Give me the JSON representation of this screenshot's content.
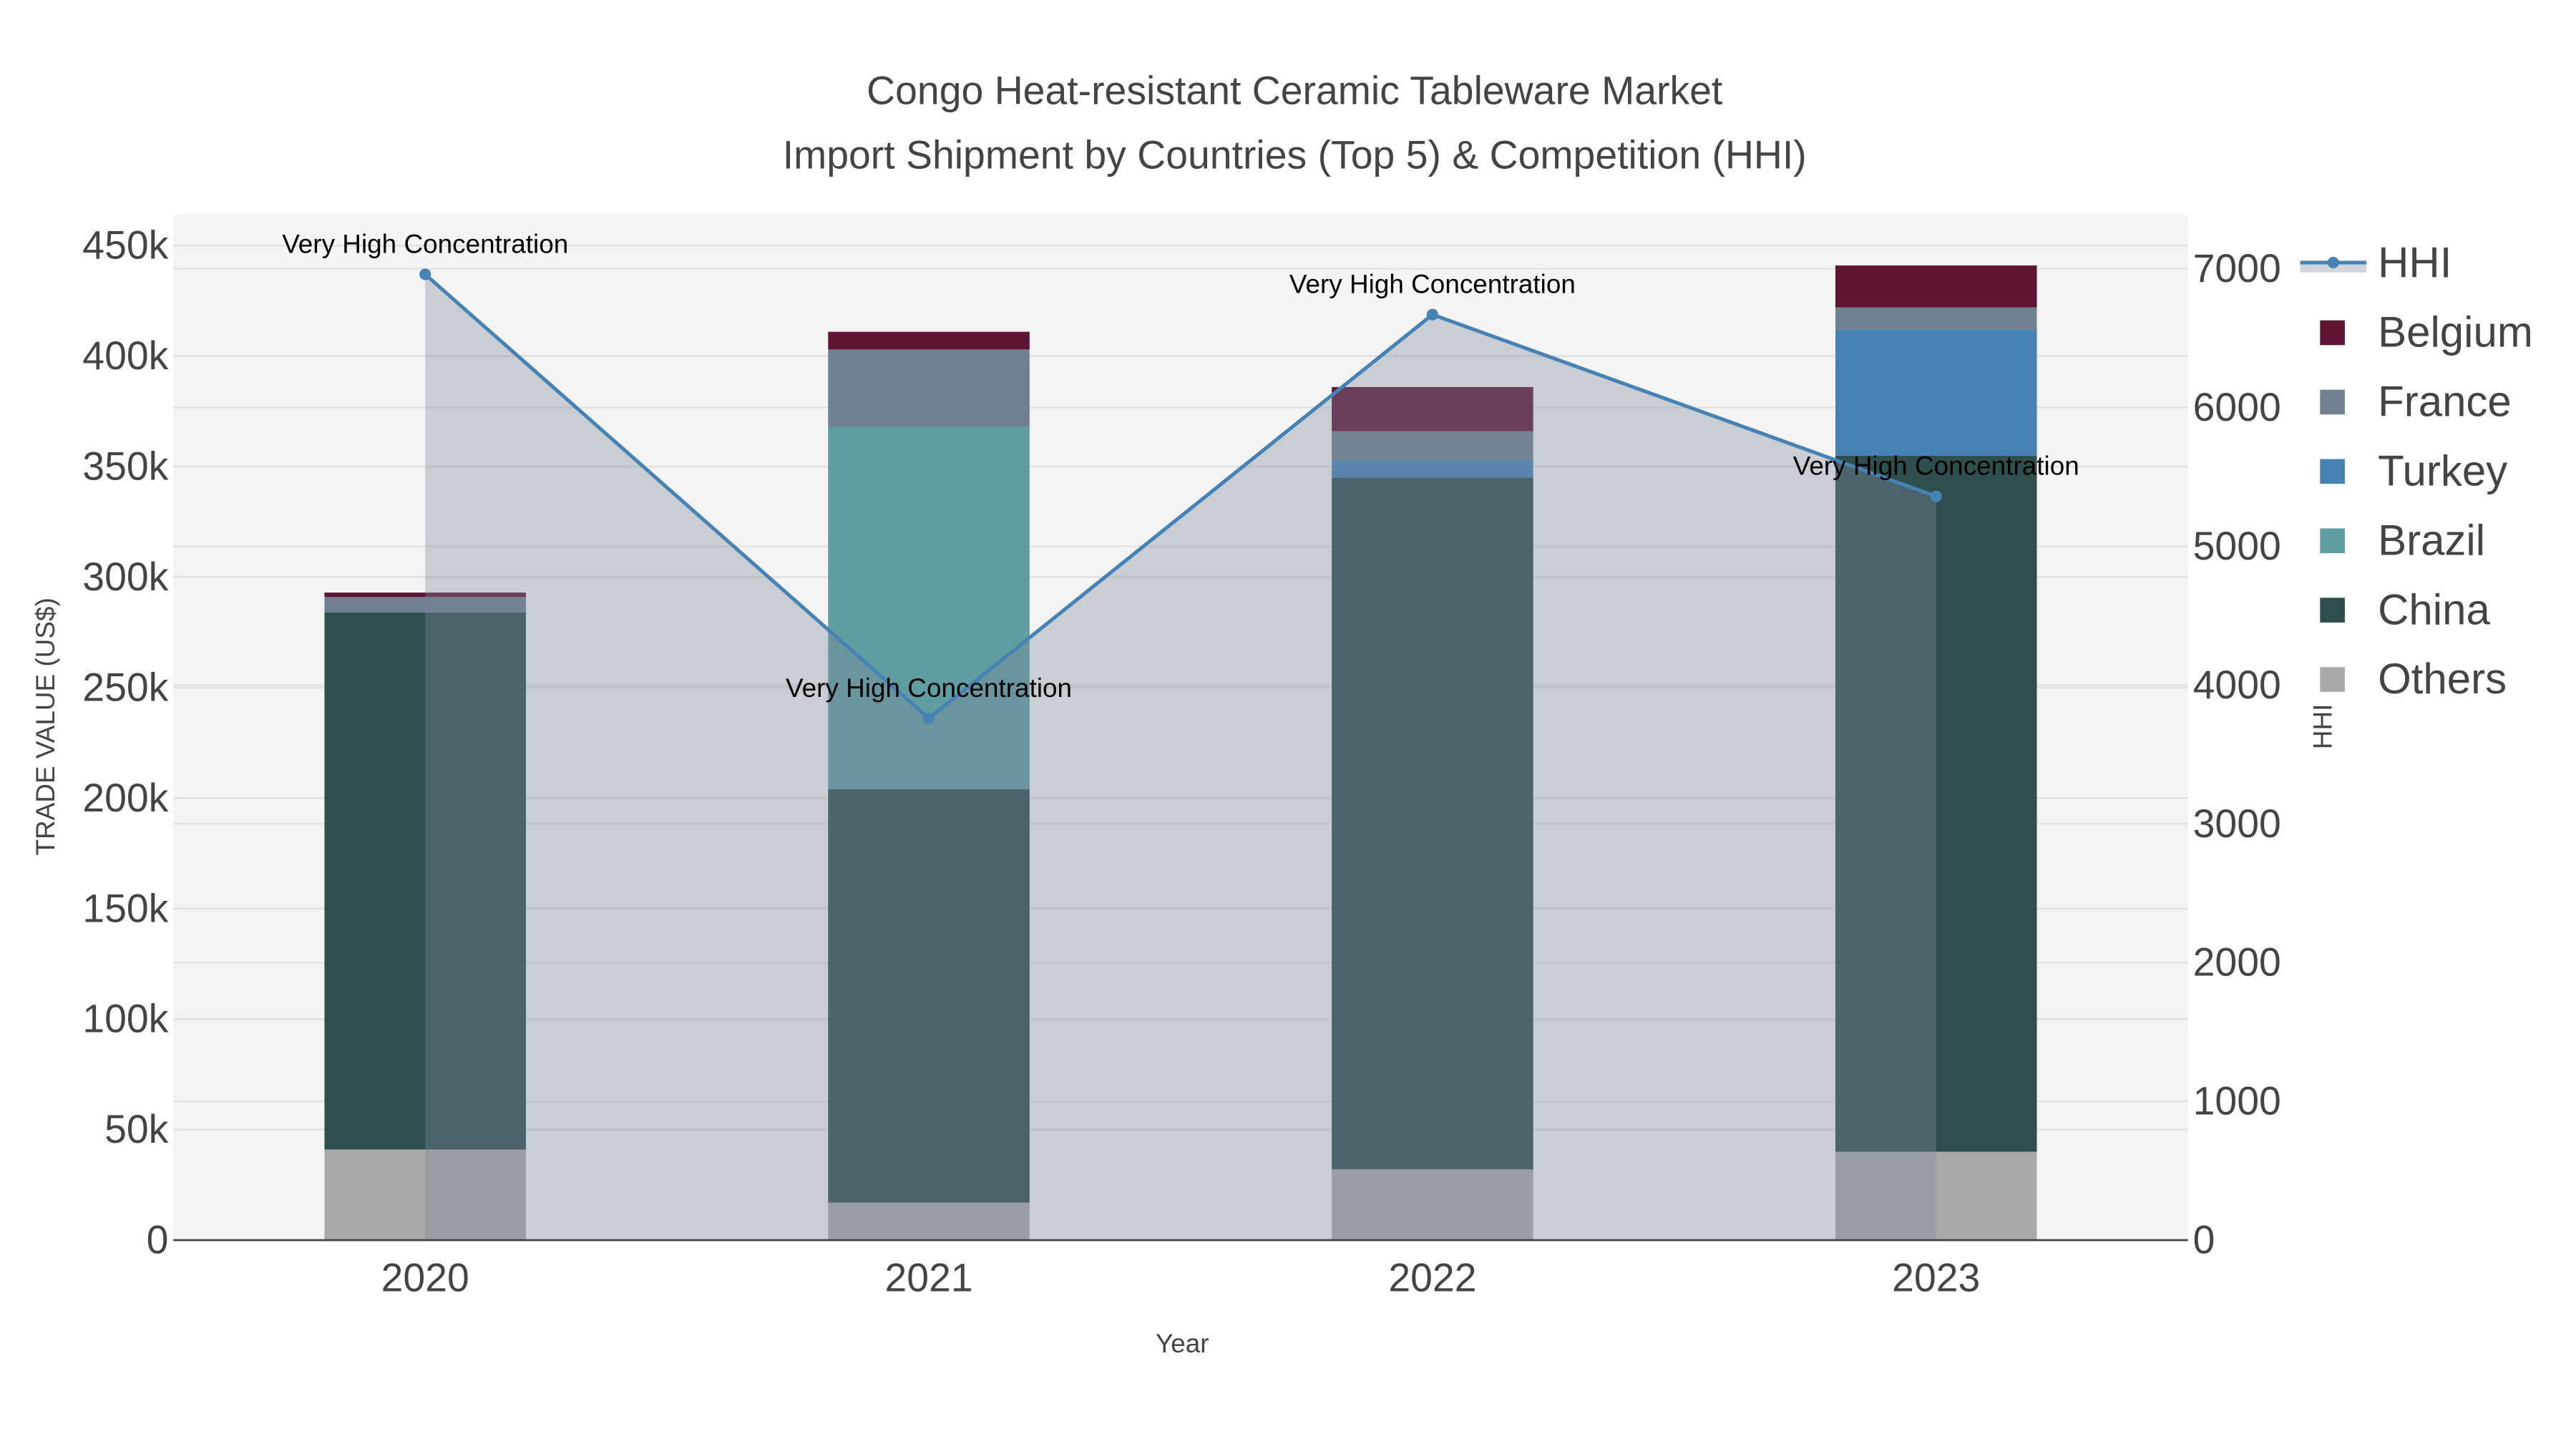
{
  "chart_data": {
    "type": "bar",
    "title_line1": "Congo Heat-resistant Ceramic Tableware Market",
    "title_line2": "Import Shipment by Countries (Top 5) & Competition (HHI)",
    "xlabel": "Year",
    "ylabel": "TRADE VALUE (US$)",
    "y2label": "HHI",
    "categories": [
      "2020",
      "2021",
      "2022",
      "2023"
    ],
    "barmode": "stack",
    "ylim": [
      0,
      464000
    ],
    "y2lim": [
      0,
      7390
    ],
    "yticks": [
      0,
      50000,
      100000,
      150000,
      200000,
      250000,
      300000,
      350000,
      400000,
      450000
    ],
    "ytick_labels": [
      "0",
      "50k",
      "100k",
      "150k",
      "200k",
      "250k",
      "300k",
      "350k",
      "400k",
      "450k"
    ],
    "y2ticks": [
      0,
      1000,
      2000,
      3000,
      4000,
      5000,
      6000,
      7000
    ],
    "y2tick_labels": [
      "0",
      "1000",
      "2000",
      "3000",
      "4000",
      "5000",
      "6000",
      "7000"
    ],
    "grid": true,
    "legend_placement": "right",
    "series": [
      {
        "name": "Others",
        "color": "#a9a9a9",
        "values": [
          41000,
          17000,
          32000,
          40000
        ]
      },
      {
        "name": "China",
        "color": "#2f4f4f",
        "values": [
          243000,
          187000,
          313000,
          315000
        ]
      },
      {
        "name": "Brazil",
        "color": "#5f9ea0",
        "values": [
          0,
          164000,
          0,
          0
        ]
      },
      {
        "name": "Turkey",
        "color": "#4682b4",
        "values": [
          0,
          0,
          8000,
          57000
        ]
      },
      {
        "name": "France",
        "color": "#708090",
        "values": [
          7000,
          35000,
          13000,
          10000
        ]
      },
      {
        "name": "Belgium",
        "color": "#601434",
        "values": [
          2000,
          8000,
          20000,
          19000
        ]
      }
    ],
    "hhi": {
      "name": "HHI",
      "color": "#4682b4",
      "values": [
        6960,
        3760,
        6670,
        5360
      ],
      "annotations": [
        "Very High Concentration",
        "Very High Concentration",
        "Very High Concentration",
        "Very High Concentration"
      ]
    },
    "legend_order": [
      "HHI",
      "Belgium",
      "France",
      "Turkey",
      "Brazil",
      "China",
      "Others"
    ]
  }
}
